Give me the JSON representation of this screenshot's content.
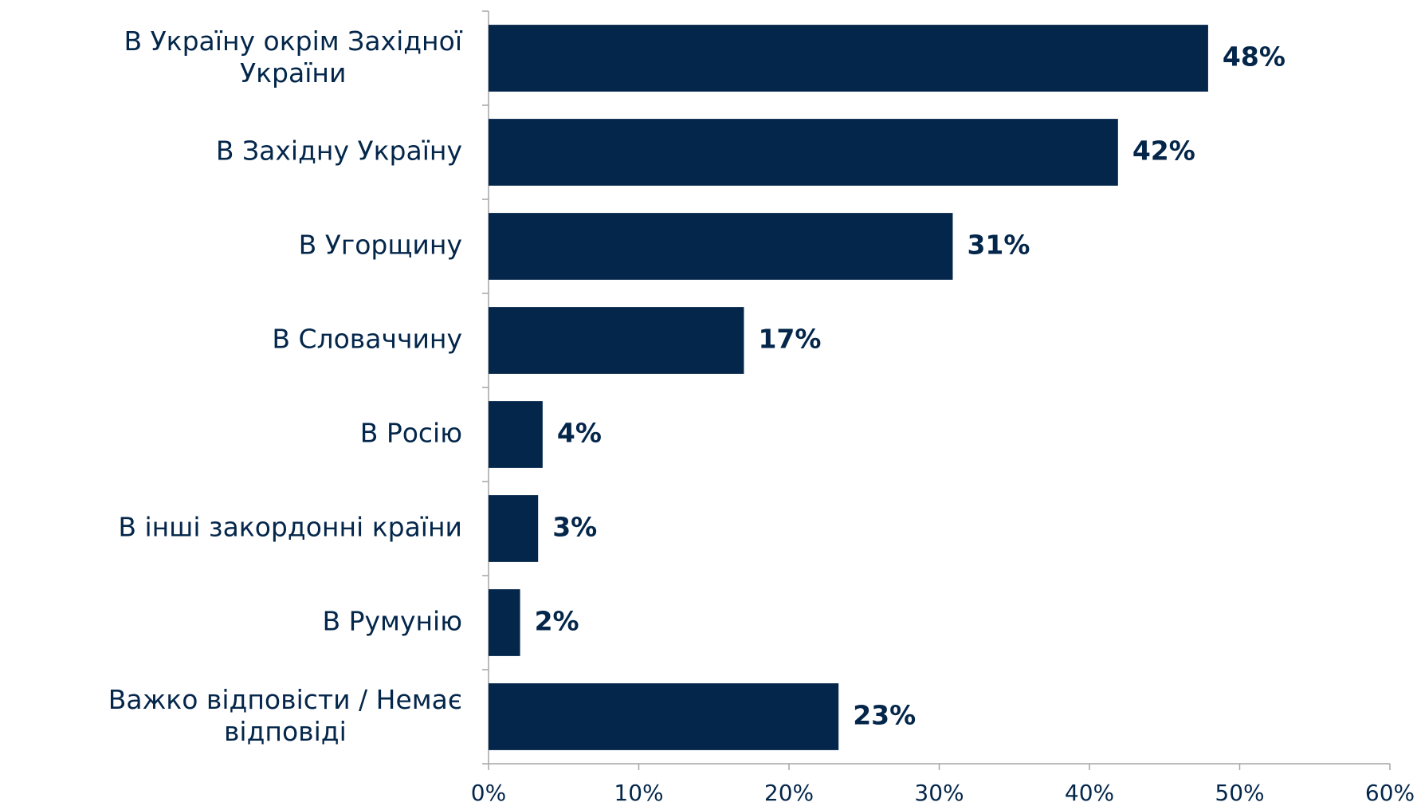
{
  "chart_data": {
    "type": "barh",
    "categories": [
      "В Україну окрім Західної України",
      "В Західну Україну",
      "В Угорщину",
      "В Словаччину",
      "В Росію",
      "В інші закордонні країни",
      "В Румунію",
      "Важко відповісти / Немає відповіді"
    ],
    "values": [
      47.9,
      41.9,
      30.9,
      17,
      3.6,
      3.3,
      2.1,
      23.3
    ],
    "value_labels": [
      "48%",
      "42%",
      "31%",
      "17%",
      "4%",
      "3%",
      "2%",
      "23%"
    ],
    "color": "#03264a",
    "xlim": [
      0,
      60
    ],
    "xticks": [
      {
        "value": 0,
        "label": "0%"
      },
      {
        "value": 10,
        "label": "10%"
      },
      {
        "value": 20,
        "label": "20%"
      },
      {
        "value": 30,
        "label": "30%"
      },
      {
        "value": 40,
        "label": "40%"
      },
      {
        "value": 50,
        "label": "50%"
      },
      {
        "value": 60,
        "label": "60%"
      }
    ]
  }
}
